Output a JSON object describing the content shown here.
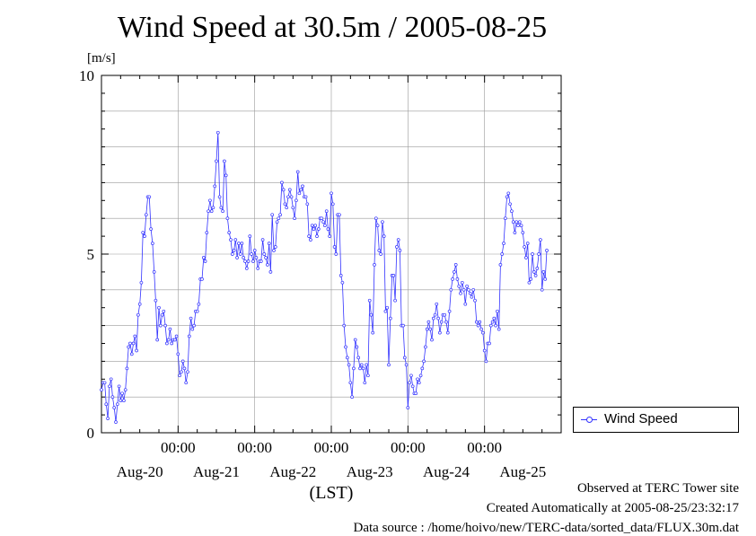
{
  "title": "Wind Speed at 30.5m / 2005-08-25",
  "unit_label": "[m/s]",
  "xlabel": "(LST)",
  "legend": {
    "label": "Wind Speed"
  },
  "footer": {
    "line1": "Observed at TERC Tower site",
    "line2": "Created Automatically at 2005-08-25/23:32:17",
    "line3": "Data source : /home/hoivo/new/TERC-data/sorted_data/FLUX.30m.dat"
  },
  "colors": {
    "series": "#3333ff",
    "grid": "#9a9a9a"
  },
  "chart_data": {
    "type": "line",
    "xlabel": "(LST)",
    "ylabel": "[m/s]",
    "ylim": [
      0,
      10
    ],
    "y_ticks": [
      "0",
      "5",
      "10"
    ],
    "x_range_hours": [
      0,
      144
    ],
    "x_ticks": [
      {
        "t": 24,
        "label": "00:00"
      },
      {
        "t": 48,
        "label": "00:00"
      },
      {
        "t": 72,
        "label": "00:00"
      },
      {
        "t": 96,
        "label": "00:00"
      },
      {
        "t": 120,
        "label": "00:00"
      }
    ],
    "x_date_labels": [
      {
        "t": 12,
        "label": "Aug-20"
      },
      {
        "t": 36,
        "label": "Aug-21"
      },
      {
        "t": 60,
        "label": "Aug-22"
      },
      {
        "t": 84,
        "label": "Aug-23"
      },
      {
        "t": 108,
        "label": "Aug-24"
      },
      {
        "t": 132,
        "label": "Aug-25"
      }
    ],
    "grid": true,
    "legend_position": "right",
    "series": [
      {
        "name": "Wind Speed",
        "interval_hours": 0.5,
        "values": [
          1.2,
          1.4,
          1.4,
          0.8,
          0.4,
          1.3,
          1.5,
          1.0,
          0.7,
          0.3,
          0.8,
          1.3,
          0.9,
          1.1,
          0.9,
          1.2,
          1.8,
          2.4,
          2.5,
          2.2,
          2.5,
          2.7,
          2.3,
          3.3,
          3.6,
          4.2,
          5.6,
          5.5,
          6.1,
          6.6,
          6.6,
          5.7,
          5.3,
          4.5,
          3.7,
          2.6,
          3.5,
          3.0,
          3.3,
          3.4,
          3.0,
          2.5,
          2.6,
          2.9,
          2.5,
          2.6,
          2.6,
          2.7,
          2.2,
          1.6,
          1.7,
          2.0,
          1.8,
          1.4,
          1.7,
          2.7,
          3.2,
          2.9,
          3.0,
          3.4,
          3.4,
          3.6,
          4.3,
          4.3,
          4.9,
          4.8,
          5.6,
          6.2,
          6.5,
          6.2,
          6.3,
          6.9,
          7.6,
          8.4,
          6.6,
          6.3,
          6.2,
          7.6,
          7.2,
          6.0,
          5.6,
          5.4,
          5.0,
          5.1,
          5.4,
          4.9,
          5.3,
          5.0,
          5.3,
          4.9,
          4.8,
          4.6,
          4.8,
          5.5,
          5.0,
          4.8,
          5.1,
          4.9,
          4.6,
          4.8,
          4.8,
          5.4,
          5.0,
          4.9,
          4.7,
          5.3,
          4.5,
          6.1,
          5.1,
          5.2,
          5.9,
          6.0,
          6.1,
          7.0,
          6.8,
          6.4,
          6.3,
          6.6,
          6.8,
          6.6,
          6.3,
          6.0,
          6.5,
          7.3,
          6.7,
          6.8,
          6.9,
          6.6,
          6.6,
          6.4,
          5.5,
          5.4,
          5.8,
          5.7,
          5.8,
          5.5,
          5.7,
          6.0,
          6.0,
          5.9,
          5.8,
          6.2,
          5.7,
          5.5,
          6.7,
          6.4,
          5.2,
          5.0,
          6.1,
          6.1,
          4.4,
          4.2,
          3.0,
          2.4,
          2.1,
          1.9,
          1.4,
          1.0,
          1.8,
          2.6,
          2.4,
          2.1,
          1.8,
          1.9,
          1.8,
          1.4,
          1.9,
          1.6,
          3.7,
          3.3,
          2.8,
          4.7,
          6.0,
          5.8,
          5.1,
          5.0,
          5.9,
          5.5,
          3.4,
          3.5,
          1.9,
          3.2,
          4.4,
          4.4,
          3.7,
          5.2,
          5.4,
          5.1,
          3.0,
          3.0,
          2.1,
          1.9,
          0.7,
          1.4,
          1.6,
          1.3,
          1.1,
          1.1,
          1.5,
          1.4,
          1.6,
          1.8,
          2.0,
          2.4,
          2.9,
          3.1,
          2.9,
          2.6,
          3.2,
          3.3,
          3.6,
          3.2,
          2.8,
          3.1,
          3.3,
          3.3,
          3.1,
          2.8,
          3.4,
          4.0,
          4.3,
          4.5,
          4.7,
          4.3,
          4.1,
          3.9,
          4.2,
          4.0,
          3.6,
          4.1,
          4.0,
          3.9,
          3.8,
          4.0,
          3.7,
          3.1,
          3.0,
          3.1,
          2.9,
          2.8,
          2.3,
          2.0,
          2.5,
          2.5,
          3.0,
          3.1,
          3.2,
          3.0,
          3.4,
          2.9,
          4.7,
          5.0,
          5.3,
          6.0,
          6.6,
          6.7,
          6.4,
          6.2,
          5.9,
          5.6,
          5.9,
          5.8,
          5.9,
          5.8,
          5.6,
          5.2,
          4.9,
          5.3,
          4.2,
          4.3,
          5.0,
          4.5,
          4.4,
          4.6,
          5.0,
          5.4,
          4.0,
          4.5,
          4.3,
          5.1
        ]
      }
    ]
  }
}
